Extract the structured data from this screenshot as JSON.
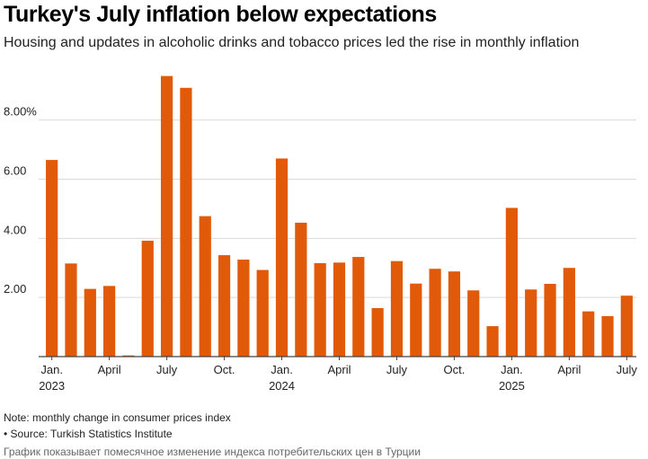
{
  "title": "Turkey's July inflation below expectations",
  "subtitle": "Housing and updates in alcoholic drinks and tobacco prices led the rise in monthly inflation",
  "note": "Note: monthly change in consumer prices index",
  "source": "• Source: Turkish Statistics Institute",
  "caption": "График показывает помесячное изменение индекса потребительских цен в Турции",
  "colors": {
    "bar": "#e05a0a",
    "grid": "#d9d9d9",
    "axis": "#444444",
    "text": "#222222"
  },
  "chart_data": {
    "type": "bar",
    "title": "Turkey's July inflation below expectations",
    "xlabel": "",
    "ylabel": "",
    "ylim": [
      0,
      9.6
    ],
    "grid": true,
    "yticks": [
      2,
      4,
      6,
      8
    ],
    "ytick_labels": [
      "2.00",
      "4.00",
      "6.00",
      "8.00%"
    ],
    "categories": [
      "2023-01",
      "2023-02",
      "2023-03",
      "2023-04",
      "2023-05",
      "2023-06",
      "2023-07",
      "2023-08",
      "2023-09",
      "2023-10",
      "2023-11",
      "2023-12",
      "2024-01",
      "2024-02",
      "2024-03",
      "2024-04",
      "2024-05",
      "2024-06",
      "2024-07",
      "2024-08",
      "2024-09",
      "2024-10",
      "2024-11",
      "2024-12",
      "2025-01",
      "2025-02",
      "2025-03",
      "2025-04",
      "2025-05",
      "2025-06",
      "2025-07"
    ],
    "values": [
      6.65,
      3.15,
      2.29,
      2.39,
      0.04,
      3.92,
      9.49,
      9.09,
      4.75,
      3.43,
      3.28,
      2.93,
      6.7,
      4.53,
      3.16,
      3.18,
      3.37,
      1.64,
      3.23,
      2.47,
      2.97,
      2.88,
      2.24,
      1.03,
      5.03,
      2.27,
      2.46,
      3.0,
      1.53,
      1.37,
      2.06
    ],
    "x_ticks": [
      {
        "index": 0,
        "label": "Jan.",
        "year": "2023"
      },
      {
        "index": 3,
        "label": "April",
        "year": ""
      },
      {
        "index": 6,
        "label": "July",
        "year": ""
      },
      {
        "index": 9,
        "label": "Oct.",
        "year": ""
      },
      {
        "index": 12,
        "label": "Jan.",
        "year": "2024"
      },
      {
        "index": 15,
        "label": "April",
        "year": ""
      },
      {
        "index": 18,
        "label": "July",
        "year": ""
      },
      {
        "index": 21,
        "label": "Oct.",
        "year": ""
      },
      {
        "index": 24,
        "label": "Jan.",
        "year": "2025"
      },
      {
        "index": 27,
        "label": "April",
        "year": ""
      },
      {
        "index": 30,
        "label": "July",
        "year": ""
      }
    ]
  }
}
